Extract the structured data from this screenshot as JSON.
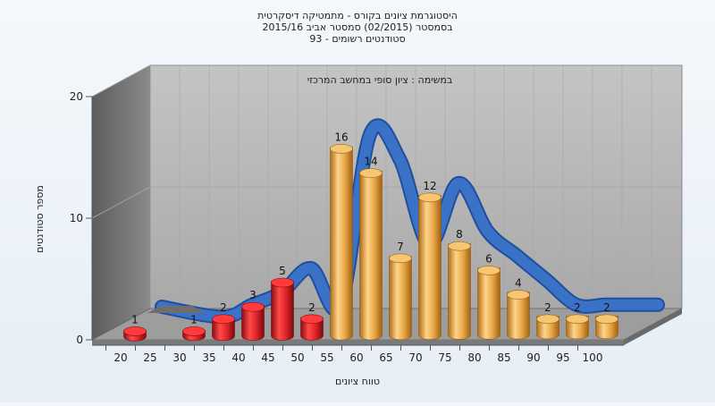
{
  "chart_data": {
    "type": "bar",
    "title_lines": [
      "היסטוגרמת ציונים בקורס - מתמטיקה דיסקרטית",
      "בסמסטר   (02/2015)   סמסטר אביב 2015/16",
      "סטודנטים רשומים - 93"
    ],
    "subtitle": "במשימה : ציון סופי במחשב המרכזי",
    "xlabel": "טווח ציונים",
    "ylabel": "מספר סטודנטים",
    "x_ticks": [
      "20",
      "25",
      "30",
      "35",
      "40",
      "45",
      "50",
      "55",
      "60",
      "65",
      "70",
      "75",
      "80",
      "85",
      "90",
      "95",
      "100"
    ],
    "y_ticks": [
      "0",
      "10",
      "20"
    ],
    "ylim": [
      0,
      20
    ],
    "categories": [
      "20",
      "30",
      "35",
      "40",
      "45",
      "50",
      "55",
      "60",
      "65",
      "70",
      "75",
      "80",
      "85",
      "90",
      "95",
      "100"
    ],
    "values": [
      1,
      1,
      2,
      3,
      5,
      2,
      16,
      14,
      7,
      12,
      8,
      6,
      4,
      2,
      2,
      2
    ],
    "bar_colors": [
      "red",
      "red",
      "red",
      "red",
      "red",
      "red",
      "orange",
      "orange",
      "orange",
      "orange",
      "orange",
      "orange",
      "orange",
      "orange",
      "orange",
      "orange"
    ],
    "grid": true,
    "colors": {
      "red_bar": "#e0252a",
      "orange_bar": "#e9a94a",
      "curve": "#3a72c8",
      "wall": "#b8b8b8",
      "left_wall": "#7b7b7b",
      "floor": "#9e9e9e"
    }
  }
}
